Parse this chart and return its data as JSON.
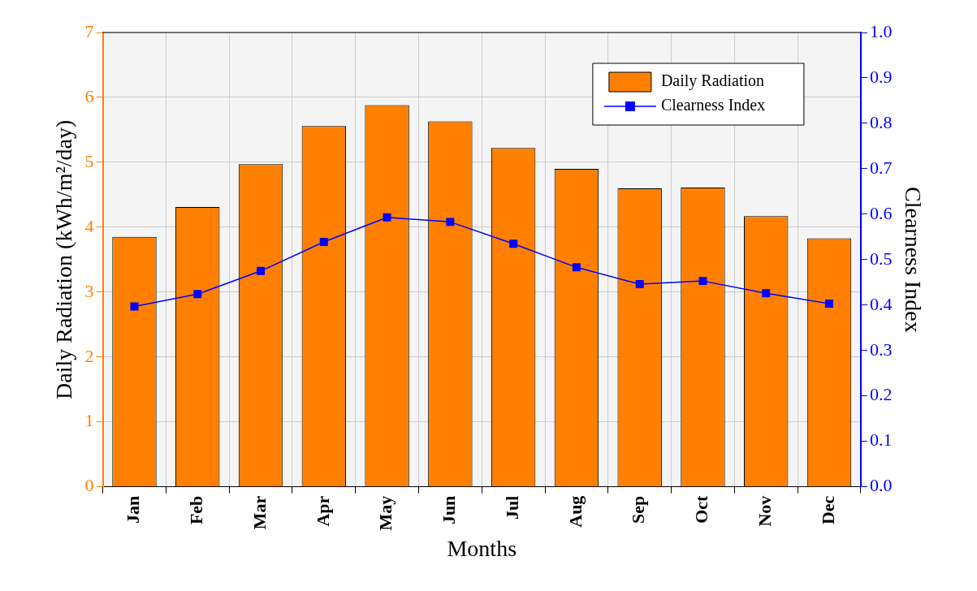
{
  "chart_data": {
    "type": "bar",
    "xlabel": "Months",
    "ylabel": "Daily Radiation (kWh/m²/day)",
    "y2label": "Clearness Index",
    "categories": [
      "Jan",
      "Feb",
      "Mar",
      "Apr",
      "May",
      "Jun",
      "Jul",
      "Aug",
      "Sep",
      "Oct",
      "Nov",
      "Dec"
    ],
    "series": [
      {
        "name": "Daily Radiation",
        "color": "#ff8000",
        "values": [
          3.85,
          4.31,
          4.97,
          5.56,
          5.88,
          5.63,
          5.22,
          4.9,
          4.6,
          4.61,
          4.17,
          3.83
        ]
      },
      {
        "name": "Clearness Index",
        "type": "line",
        "axis": "y2",
        "color": "#0000ff",
        "values": [
          0.397,
          0.424,
          0.475,
          0.539,
          0.593,
          0.583,
          0.535,
          0.483,
          0.446,
          0.453,
          0.426,
          0.403
        ]
      }
    ],
    "ylim": [
      0,
      7
    ],
    "yticks": [
      0,
      1,
      2,
      3,
      4,
      5,
      6,
      7
    ],
    "y2lim": [
      0,
      1
    ],
    "y2ticks": [
      {
        "value": 0,
        "label": "0.0"
      },
      {
        "value": 0.1,
        "label": "0.1"
      },
      {
        "value": 0.2,
        "label": "0.2"
      },
      {
        "value": 0.3,
        "label": "0.3"
      },
      {
        "value": 0.4,
        "label": "0.4"
      },
      {
        "value": 0.5,
        "label": "0.5"
      },
      {
        "value": 0.6,
        "label": "0.6"
      },
      {
        "value": 0.7,
        "label": "0.7"
      },
      {
        "value": 0.8,
        "label": "0.8"
      },
      {
        "value": 0.9,
        "label": "0.9"
      },
      {
        "value": 1,
        "label": "1.0"
      }
    ],
    "grid": true,
    "legend": "top right",
    "marker": "square",
    "line_style": "solid"
  }
}
